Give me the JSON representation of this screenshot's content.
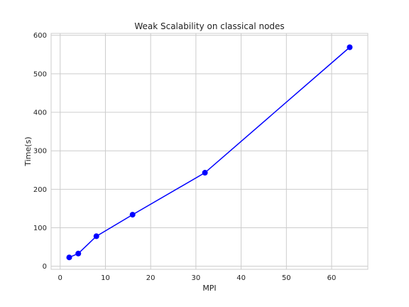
{
  "chart_data": {
    "type": "line",
    "title": "Weak Scalability on classical nodes",
    "xlabel": "MPI",
    "ylabel": "Time(s)",
    "xlim": [
      -2,
      68
    ],
    "ylim": [
      -8,
      605
    ],
    "xticks": [
      0,
      10,
      20,
      30,
      40,
      50,
      60
    ],
    "yticks": [
      0,
      100,
      200,
      300,
      400,
      500,
      600
    ],
    "grid": true,
    "series": [
      {
        "color": "#0000ff",
        "marker": "circle",
        "x": [
          2,
          4,
          8,
          16,
          32,
          64
        ],
        "y": [
          23,
          33,
          78,
          134,
          243,
          569
        ]
      }
    ]
  }
}
